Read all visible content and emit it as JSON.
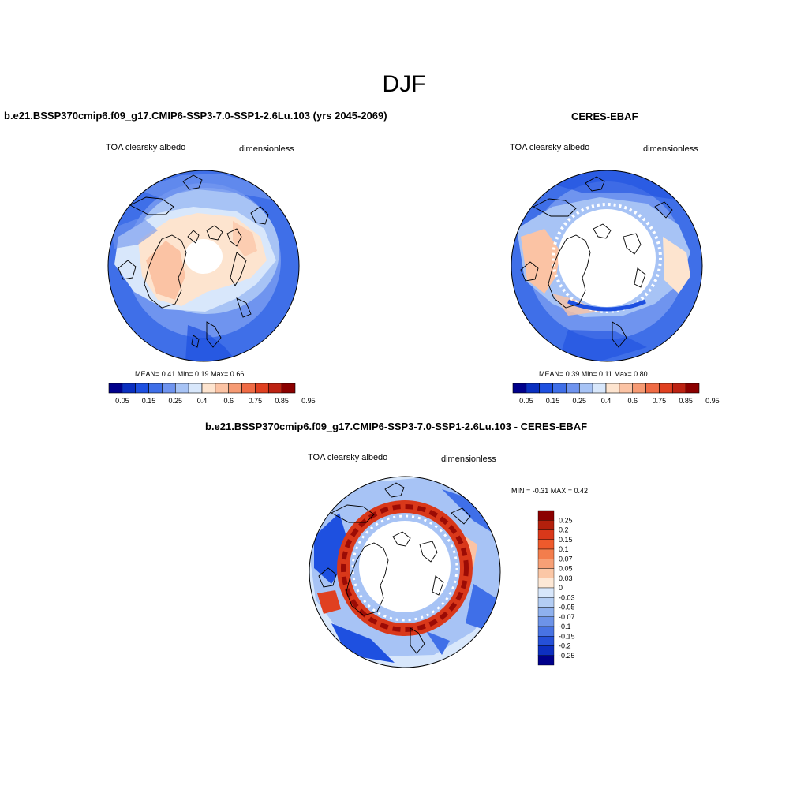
{
  "figure": {
    "title": "DJF"
  },
  "panels": {
    "model": {
      "title": "b.e21.BSSP370cmip6.f09_g17.CMIP6-SSP3-7.0-SSP1-2.6Lu.103 (yrs 2045-2069)",
      "variable": "TOA clearsky albedo",
      "units": "dimensionless",
      "stats": "MEAN=   0.41  Min=   0.19  Max=   0.66"
    },
    "obs": {
      "title": "CERES-EBAF",
      "variable": "TOA clearsky albedo",
      "units": "dimensionless",
      "stats": "MEAN=   0.39  Min=   0.11  Max=   0.80"
    },
    "diff": {
      "title": "b.e21.BSSP370cmip6.f09_g17.CMIP6-SSP3-7.0-SSP1-2.6Lu.103 - CERES-EBAF",
      "variable": "TOA clearsky albedo",
      "units": "dimensionless",
      "stats": "MIN =  -0.31 MAX =   0.42"
    }
  },
  "colorbar_abs": {
    "colors": [
      "#00008b",
      "#0a2fc0",
      "#1e50e0",
      "#3f6fe8",
      "#6f94ef",
      "#a7c3f5",
      "#d8e7fb",
      "#fde4cf",
      "#fbc3a4",
      "#f69a73",
      "#ef6b45",
      "#e04020",
      "#bd2212",
      "#8b0000"
    ],
    "labels": [
      "0.05",
      "0.15",
      "0.25",
      "0.4",
      "0.6",
      "0.75",
      "0.85",
      "0.95"
    ]
  },
  "colorbar_diff": {
    "colors": [
      "#8b0000",
      "#b3200c",
      "#d9381a",
      "#ee5a2c",
      "#f37d4c",
      "#f7a076",
      "#fbc7a6",
      "#fde8d6",
      "#d8e7fb",
      "#b3cdf4",
      "#8fb1ee",
      "#6d93e8",
      "#4873e3",
      "#2550d8",
      "#0d2fc0",
      "#00008b"
    ],
    "labels": [
      "0.25",
      "0.2",
      "0.15",
      "0.1",
      "0.07",
      "0.05",
      "0.03",
      "0",
      "-0.03",
      "-0.05",
      "-0.07",
      "-0.1",
      "-0.15",
      "-0.2",
      "-0.25"
    ]
  },
  "map_colors": {
    "ocean_low": "#3f6fe8",
    "ocean_mid": "#6f94ef",
    "ocean_light": "#a7c3f5",
    "land_pale": "#d8e7fb",
    "land_warm": "#fde4cf",
    "land_orange": "#fbc3a4",
    "diff_red": "#c8301a",
    "diff_dark": "#8b0000",
    "coast": "#000000"
  }
}
